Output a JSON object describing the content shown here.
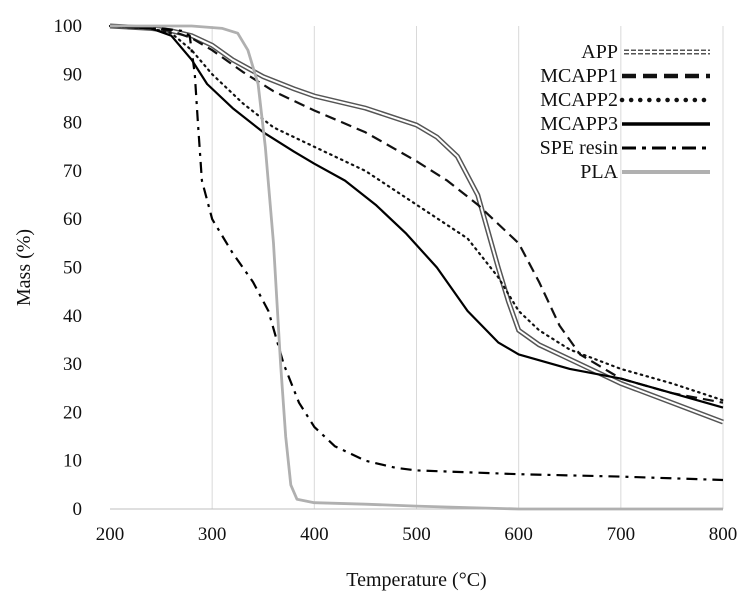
{
  "chart_data": {
    "type": "line",
    "title": "",
    "xlabel": "Temperature (°C)",
    "ylabel": "Mass (%)",
    "xlim": [
      200,
      800
    ],
    "ylim": [
      0,
      100
    ],
    "xticks": [
      200,
      300,
      400,
      500,
      600,
      700,
      800
    ],
    "yticks": [
      0,
      10,
      20,
      30,
      40,
      50,
      60,
      70,
      80,
      90,
      100
    ],
    "grid": "vertical",
    "legend_position": "top-right",
    "series": [
      {
        "name": "APP",
        "style": "double",
        "color": "#555555",
        "points": [
          [
            200,
            100
          ],
          [
            240,
            99.5
          ],
          [
            260,
            99
          ],
          [
            280,
            98
          ],
          [
            300,
            96
          ],
          [
            320,
            93
          ],
          [
            350,
            89.5
          ],
          [
            380,
            87
          ],
          [
            400,
            85.5
          ],
          [
            450,
            83
          ],
          [
            500,
            79.5
          ],
          [
            520,
            77
          ],
          [
            540,
            73
          ],
          [
            560,
            65
          ],
          [
            580,
            50
          ],
          [
            590,
            43
          ],
          [
            600,
            37
          ],
          [
            620,
            34
          ],
          [
            650,
            31
          ],
          [
            700,
            26
          ],
          [
            750,
            22
          ],
          [
            800,
            18
          ]
        ]
      },
      {
        "name": "MCAPP1",
        "style": "dashed",
        "color": "#111111",
        "points": [
          [
            200,
            100
          ],
          [
            240,
            99.5
          ],
          [
            260,
            99
          ],
          [
            280,
            97.5
          ],
          [
            300,
            95
          ],
          [
            330,
            90.5
          ],
          [
            360,
            86.5
          ],
          [
            400,
            82.5
          ],
          [
            450,
            78
          ],
          [
            500,
            72
          ],
          [
            530,
            68
          ],
          [
            560,
            63
          ],
          [
            580,
            59
          ],
          [
            600,
            55
          ],
          [
            620,
            47
          ],
          [
            640,
            38
          ],
          [
            660,
            32
          ],
          [
            700,
            27
          ],
          [
            750,
            24
          ],
          [
            800,
            22
          ]
        ]
      },
      {
        "name": "MCAPP2",
        "style": "dotted",
        "color": "#111111",
        "points": [
          [
            200,
            100
          ],
          [
            240,
            99.5
          ],
          [
            260,
            98.5
          ],
          [
            280,
            95
          ],
          [
            300,
            90
          ],
          [
            330,
            84
          ],
          [
            360,
            79
          ],
          [
            400,
            75
          ],
          [
            450,
            70
          ],
          [
            500,
            63
          ],
          [
            550,
            56
          ],
          [
            580,
            48
          ],
          [
            600,
            41
          ],
          [
            620,
            37
          ],
          [
            650,
            33
          ],
          [
            700,
            29
          ],
          [
            750,
            26
          ],
          [
            800,
            22.5
          ]
        ]
      },
      {
        "name": "MCAPP3",
        "style": "solid",
        "color": "#000000",
        "points": [
          [
            200,
            100
          ],
          [
            240,
            99.5
          ],
          [
            260,
            98
          ],
          [
            280,
            93
          ],
          [
            295,
            88
          ],
          [
            320,
            83
          ],
          [
            350,
            78
          ],
          [
            380,
            74
          ],
          [
            400,
            71.5
          ],
          [
            430,
            68
          ],
          [
            460,
            63
          ],
          [
            490,
            57
          ],
          [
            520,
            50
          ],
          [
            550,
            41
          ],
          [
            580,
            34.5
          ],
          [
            600,
            32
          ],
          [
            650,
            29
          ],
          [
            700,
            27
          ],
          [
            750,
            24
          ],
          [
            800,
            21
          ]
        ]
      },
      {
        "name": "SPE resin",
        "style": "dashdot",
        "color": "#000000",
        "points": [
          [
            200,
            100
          ],
          [
            250,
            99.5
          ],
          [
            270,
            99
          ],
          [
            278,
            98
          ],
          [
            283,
            90
          ],
          [
            286,
            80
          ],
          [
            290,
            68
          ],
          [
            300,
            60
          ],
          [
            320,
            53
          ],
          [
            340,
            47
          ],
          [
            355,
            41
          ],
          [
            370,
            30
          ],
          [
            385,
            22
          ],
          [
            400,
            17
          ],
          [
            420,
            13
          ],
          [
            450,
            10
          ],
          [
            480,
            8.5
          ],
          [
            500,
            8
          ],
          [
            600,
            7.2
          ],
          [
            700,
            6.7
          ],
          [
            800,
            6
          ]
        ]
      },
      {
        "name": "PLA",
        "style": "solid-light",
        "color": "#b0b0b0",
        "points": [
          [
            200,
            100
          ],
          [
            280,
            100
          ],
          [
            310,
            99.5
          ],
          [
            325,
            98.5
          ],
          [
            335,
            95
          ],
          [
            345,
            88
          ],
          [
            352,
            75
          ],
          [
            360,
            55
          ],
          [
            367,
            30
          ],
          [
            372,
            15
          ],
          [
            377,
            5
          ],
          [
            383,
            2
          ],
          [
            400,
            1.3
          ],
          [
            450,
            1
          ],
          [
            500,
            0.6
          ],
          [
            550,
            0.3
          ],
          [
            600,
            0
          ],
          [
            700,
            0
          ],
          [
            800,
            0
          ]
        ]
      }
    ]
  }
}
